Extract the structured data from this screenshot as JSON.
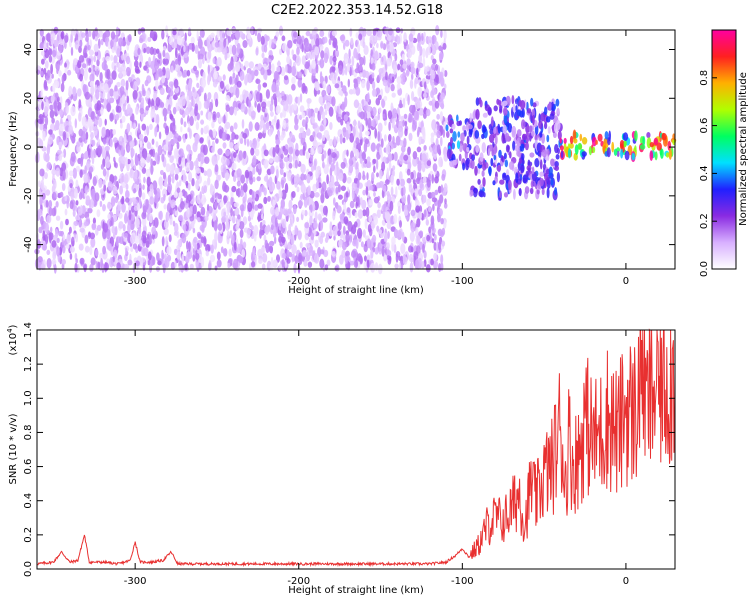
{
  "figure": {
    "title": "C2E2.2022.353.14.52.G18"
  },
  "chart_data": [
    {
      "type": "heatmap",
      "title": "",
      "xlabel": "Height of straight line (km)",
      "ylabel": "Frequency (Hz)",
      "xlim": [
        -360,
        30
      ],
      "ylim": [
        -50,
        48
      ],
      "x_ticks": [
        -300,
        -200,
        -100,
        0
      ],
      "x_tick_labels": [
        "-300",
        "-200",
        "-100",
        "0"
      ],
      "y_ticks": [
        -40,
        -20,
        0,
        20,
        40
      ],
      "y_tick_labels": [
        "-40",
        "-20",
        "0",
        "20",
        "40"
      ],
      "colorbar": {
        "label": "Normalized spectral amplitude",
        "range": [
          0,
          1
        ],
        "ticks": [
          0.0,
          0.2,
          0.4,
          0.6,
          0.8
        ],
        "tick_labels": [
          "0.0",
          "0.2",
          "0.4",
          "0.6",
          "0.8"
        ],
        "colors": [
          "#ffffff",
          "#d8b0ff",
          "#8a2be2",
          "#2020ff",
          "#00e0ff",
          "#00ff60",
          "#b0ff00",
          "#ffb000",
          "#ff2020",
          "#ff00a0"
        ]
      },
      "regions": [
        {
          "x_range": [
            -360,
            -110
          ],
          "f_range": [
            -50,
            48
          ],
          "amplitude": 0.12,
          "description_color": "#7a20e0"
        },
        {
          "x_range": [
            -110,
            -95
          ],
          "f_range": [
            -8,
            12
          ],
          "amplitude": 0.3
        },
        {
          "x_range": [
            -95,
            -40
          ],
          "f_range": [
            -20,
            20
          ],
          "amplitude": 0.25
        },
        {
          "x_range": [
            -40,
            30
          ],
          "f_range": [
            -4,
            5
          ],
          "amplitude": 0.7
        }
      ]
    },
    {
      "type": "line",
      "title": "",
      "xlabel": "Height of straight line (km)",
      "ylabel": "SNR (10 * v/v)",
      "y_scale_label": "(x10",
      "y_scale_exponent": "4",
      "y_scale_suffix": ")",
      "xlim": [
        -360,
        30
      ],
      "ylim": [
        0,
        1.4
      ],
      "x_ticks": [
        -300,
        -200,
        -100,
        0
      ],
      "x_tick_labels": [
        "-300",
        "-200",
        "-100",
        "0"
      ],
      "y_ticks": [
        0.0,
        0.2,
        0.4,
        0.6,
        0.8,
        1.0,
        1.2,
        1.4
      ],
      "y_tick_labels": [
        "0.0",
        "0.2",
        "0.4",
        "0.6",
        "0.8",
        "1.0",
        "1.2",
        "1.4"
      ],
      "color": "#e83030",
      "series": [
        {
          "x": [
            -360,
            -350,
            -345,
            -340,
            -335,
            -331,
            -328,
            -320,
            -310,
            -303,
            -300,
            -297,
            -290,
            -283,
            -278,
            -274,
            -260,
            -240,
            -220,
            -200,
            -180,
            -160,
            -140,
            -120,
            -110,
            -104,
            -100,
            -96,
            -90,
            -85,
            -80,
            -75,
            -70,
            -65,
            -62,
            -58,
            -55,
            -50,
            -45,
            -40,
            -37,
            -35,
            -32,
            -28,
            -25,
            -20,
            -15,
            -12,
            -8,
            -5,
            0,
            5,
            8,
            10,
            12,
            15,
            20,
            25,
            30
          ],
          "y": [
            0.03,
            0.04,
            0.1,
            0.04,
            0.05,
            0.2,
            0.04,
            0.04,
            0.03,
            0.05,
            0.16,
            0.04,
            0.04,
            0.05,
            0.1,
            0.03,
            0.03,
            0.03,
            0.03,
            0.03,
            0.03,
            0.03,
            0.03,
            0.03,
            0.04,
            0.08,
            0.12,
            0.07,
            0.14,
            0.25,
            0.3,
            0.28,
            0.35,
            0.45,
            0.25,
            0.5,
            0.4,
            0.55,
            0.6,
            0.85,
            0.5,
            0.75,
            0.6,
            0.7,
            0.88,
            0.75,
            0.8,
            0.9,
            0.85,
            0.78,
            0.95,
            0.9,
            1.05,
            1.4,
            0.95,
            1.0,
            1.1,
            1.12,
            1.15
          ]
        }
      ]
    }
  ]
}
